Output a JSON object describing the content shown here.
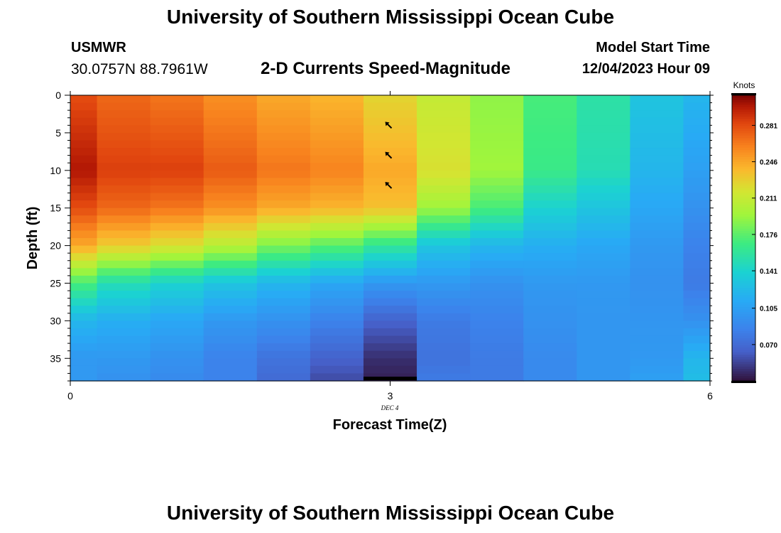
{
  "header": {
    "title": "University of Southern Mississippi Ocean Cube",
    "station": "USMWR",
    "coordinates": "30.0757N  88.7961W",
    "subtitle": "2-D Currents Speed-Magnitude",
    "model_start_label": "Model Start Time",
    "model_start_value": "12/04/2023 Hour 09"
  },
  "footer": {
    "title": "University of Southern Mississippi Ocean Cube"
  },
  "colors": {
    "arrow": "#000000",
    "axis": "#000000"
  },
  "chart_data": {
    "type": "heatmap",
    "title": "2-D Currents Speed-Magnitude",
    "xlabel": "Forecast Time(Z)",
    "ylabel": "Depth (ft)",
    "x_tick_labels": [
      "0",
      "3",
      "6"
    ],
    "x_ticks": [
      0,
      3,
      6
    ],
    "x_sub_label": "DEC 4",
    "xlim": [
      0,
      6
    ],
    "ylim": [
      0,
      38
    ],
    "y_ticks": [
      0,
      5,
      10,
      15,
      20,
      25,
      30,
      35
    ],
    "y_tick_labels": [
      "0",
      "5",
      "10",
      "15",
      "20",
      "25",
      "30",
      "35"
    ],
    "colorbar": {
      "unit": "Knots",
      "min": 0.035,
      "max": 0.31,
      "ticks": [
        0.07,
        0.105,
        0.141,
        0.176,
        0.211,
        0.246,
        0.281
      ],
      "tick_labels": [
        "0.070",
        "0.105",
        "0.141",
        "0.176",
        "0.211",
        "0.246",
        "0.281"
      ]
    },
    "time_edges": [
      0,
      0.25,
      0.75,
      1.25,
      1.75,
      2.25,
      2.75,
      3.25,
      3.75,
      4.25,
      4.75,
      5.25,
      5.75,
      6
    ],
    "depth_knots": [
      0,
      10,
      15,
      20,
      25,
      30,
      35,
      38
    ],
    "columns": [
      {
        "t": 0,
        "speeds": [
          0.28,
          0.3,
          0.28,
          0.245,
          0.17,
          0.12,
          0.1,
          0.1
        ]
      },
      {
        "t": 0.5,
        "speeds": [
          0.27,
          0.285,
          0.27,
          0.23,
          0.15,
          0.115,
          0.1,
          0.095
        ]
      },
      {
        "t": 1,
        "speeds": [
          0.265,
          0.285,
          0.265,
          0.22,
          0.14,
          0.11,
          0.095,
          0.09
        ]
      },
      {
        "t": 1.5,
        "speeds": [
          0.255,
          0.275,
          0.255,
          0.205,
          0.13,
          0.1,
          0.085,
          0.085
        ]
      },
      {
        "t": 2,
        "speeds": [
          0.245,
          0.265,
          0.245,
          0.185,
          0.12,
          0.095,
          0.075,
          0.07
        ]
      },
      {
        "t": 2.5,
        "speeds": [
          0.24,
          0.26,
          0.24,
          0.175,
          0.11,
          0.085,
          0.065,
          0.055
        ]
      },
      {
        "t": 3,
        "speeds": [
          0.225,
          0.245,
          0.235,
          0.16,
          0.1,
          0.065,
          0.045,
          0.04
        ]
      },
      {
        "t": 3.5,
        "speeds": [
          0.21,
          0.22,
          0.195,
          0.13,
          0.1,
          0.08,
          0.075,
          0.08
        ]
      },
      {
        "t": 4,
        "speeds": [
          0.19,
          0.195,
          0.17,
          0.12,
          0.095,
          0.085,
          0.08,
          0.08
        ]
      },
      {
        "t": 4.5,
        "speeds": [
          0.17,
          0.165,
          0.14,
          0.115,
          0.1,
          0.095,
          0.09,
          0.09
        ]
      },
      {
        "t": 5,
        "speeds": [
          0.155,
          0.15,
          0.13,
          0.11,
          0.1,
          0.098,
          0.098,
          0.098
        ]
      },
      {
        "t": 5.5,
        "speeds": [
          0.13,
          0.12,
          0.11,
          0.1,
          0.095,
          0.098,
          0.1,
          0.105
        ]
      },
      {
        "t": 6,
        "speeds": [
          0.12,
          0.105,
          0.095,
          0.085,
          0.08,
          0.095,
          0.12,
          0.125
        ]
      }
    ],
    "direction_arrows": [
      {
        "t": 3,
        "depth": 4,
        "direction": "northwest"
      },
      {
        "t": 3,
        "depth": 8,
        "direction": "northwest"
      },
      {
        "t": 3,
        "depth": 12,
        "direction": "northwest"
      }
    ],
    "bottom_marker": {
      "t_start": 2.75,
      "t_end": 3.25
    }
  }
}
